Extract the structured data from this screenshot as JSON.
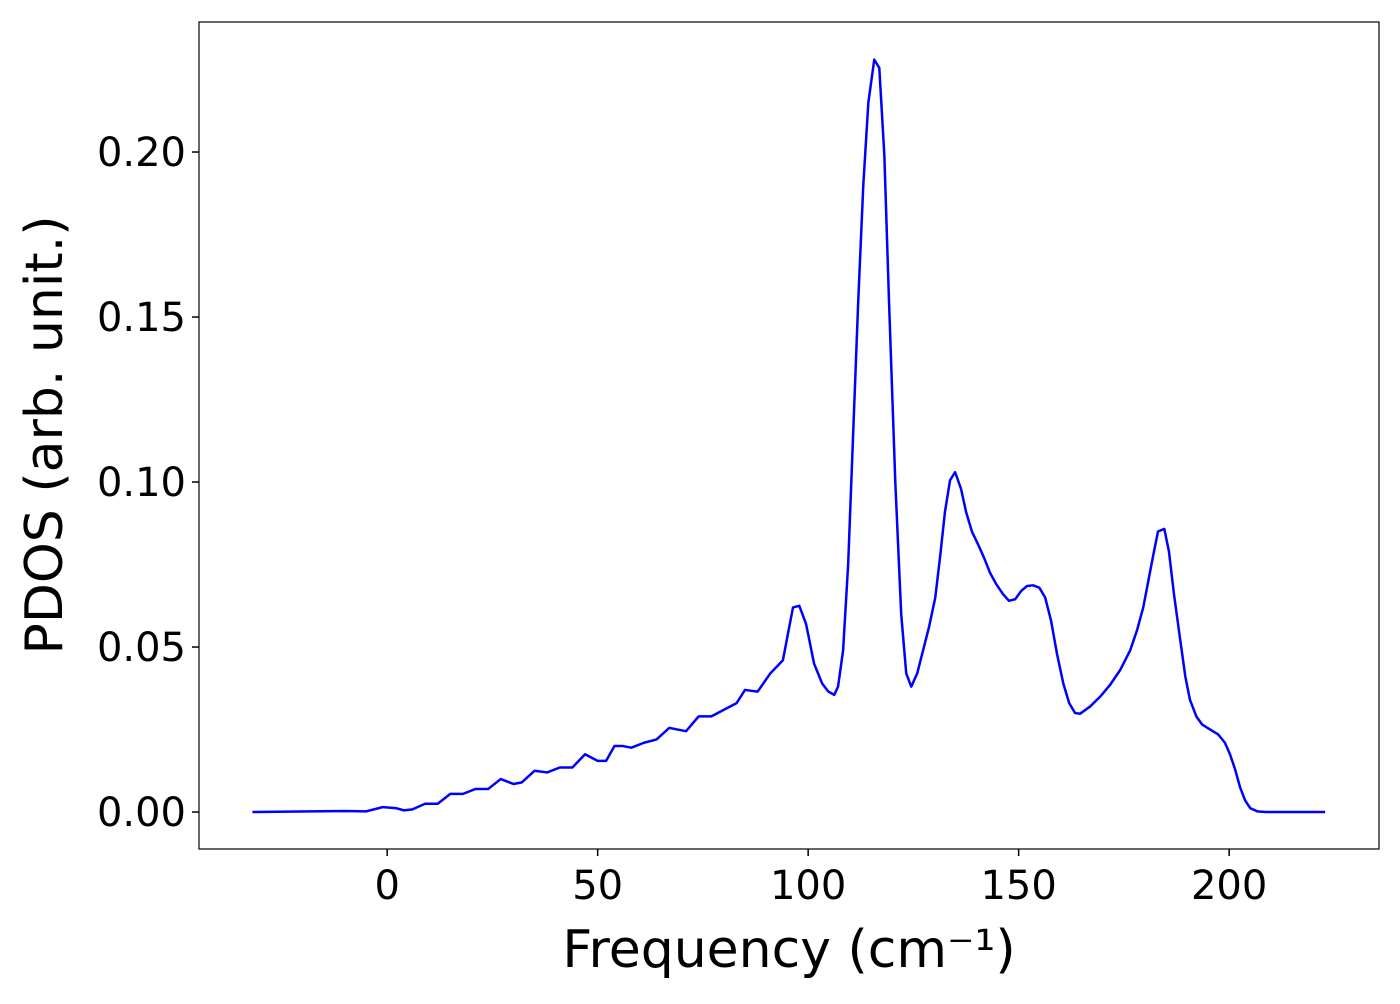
{
  "chart_data": {
    "type": "line",
    "xlabel": "Frequency (cm⁻¹)",
    "ylabel": "PDOS (arb. unit.)",
    "xlim": [
      -44.7,
      235.6
    ],
    "ylim": [
      -0.0112,
      0.2394
    ],
    "xticks": [
      0,
      50,
      100,
      150,
      200
    ],
    "yticks": [
      {
        "value": 0,
        "label": "0.00"
      },
      {
        "value": 0.05,
        "label": "0.05"
      },
      {
        "value": 0.1,
        "label": "0.10"
      },
      {
        "value": 0.15,
        "label": "0.15"
      },
      {
        "value": 0.2,
        "label": "0.20"
      }
    ],
    "x": [
      -32,
      -10,
      -5,
      -1,
      2,
      4,
      6,
      9,
      12,
      15,
      18,
      21,
      24,
      27,
      30,
      32,
      35,
      38,
      41,
      44,
      47,
      50,
      52,
      54,
      56,
      58,
      61,
      64,
      67,
      69,
      71,
      74,
      77,
      80,
      83,
      85,
      88,
      91,
      94,
      96.4,
      97.9,
      99.5,
      101.4,
      103.3,
      104.8,
      106.2,
      107.1,
      108.3,
      109.5,
      110.7,
      111.9,
      113.1,
      114.3,
      115.7,
      116.9,
      118.1,
      119.2,
      120.7,
      122.1,
      123.3,
      124.5,
      125.9,
      127.3,
      128.7,
      130.2,
      131.4,
      132.5,
      133.7,
      134.9,
      136.3,
      137.5,
      138.9,
      140.4,
      141.8,
      143.2,
      144.7,
      146.3,
      147.7,
      149.2,
      150.6,
      152.0,
      153.4,
      154.9,
      156.3,
      157.7,
      159.1,
      160.6,
      162.0,
      163.4,
      164.6,
      167.0,
      169.4,
      171.7,
      174.1,
      176.5,
      178.1,
      179.6,
      180.8,
      182.0,
      183.1,
      184.6,
      185.7,
      186.9,
      188.4,
      189.6,
      190.7,
      192.2,
      193.6,
      195.5,
      197.4,
      199.0,
      200.2,
      201.4,
      202.6,
      203.8,
      205.0,
      206.7,
      208.6,
      222.8
    ],
    "series": [
      {
        "color": "#0000ff",
        "values": [
          0,
          0.0003,
          0.0002,
          0.0015,
          0.0012,
          0.0005,
          0.0008,
          0.0025,
          0.0025,
          0.0055,
          0.0055,
          0.007,
          0.007,
          0.01,
          0.0085,
          0.009,
          0.0125,
          0.012,
          0.0135,
          0.0135,
          0.0175,
          0.0155,
          0.0155,
          0.02,
          0.02,
          0.0195,
          0.021,
          0.022,
          0.0255,
          0.025,
          0.0245,
          0.029,
          0.029,
          0.031,
          0.033,
          0.037,
          0.0365,
          0.042,
          0.046,
          0.062,
          0.0625,
          0.057,
          0.045,
          0.039,
          0.0365,
          0.0355,
          0.038,
          0.049,
          0.075,
          0.115,
          0.155,
          0.19,
          0.215,
          0.228,
          0.2255,
          0.199,
          0.155,
          0.1,
          0.06,
          0.042,
          0.038,
          0.042,
          0.049,
          0.056,
          0.065,
          0.078,
          0.091,
          0.1005,
          0.103,
          0.098,
          0.091,
          0.085,
          0.081,
          0.077,
          0.0725,
          0.069,
          0.066,
          0.064,
          0.0645,
          0.067,
          0.0685,
          0.0687,
          0.068,
          0.065,
          0.058,
          0.048,
          0.039,
          0.033,
          0.03,
          0.0298,
          0.032,
          0.035,
          0.0385,
          0.043,
          0.049,
          0.055,
          0.062,
          0.07,
          0.078,
          0.085,
          0.0858,
          0.079,
          0.066,
          0.052,
          0.041,
          0.034,
          0.029,
          0.0265,
          0.025,
          0.0235,
          0.021,
          0.0175,
          0.013,
          0.0075,
          0.0035,
          0.0012,
          0.0002,
          0,
          0
        ]
      }
    ]
  }
}
